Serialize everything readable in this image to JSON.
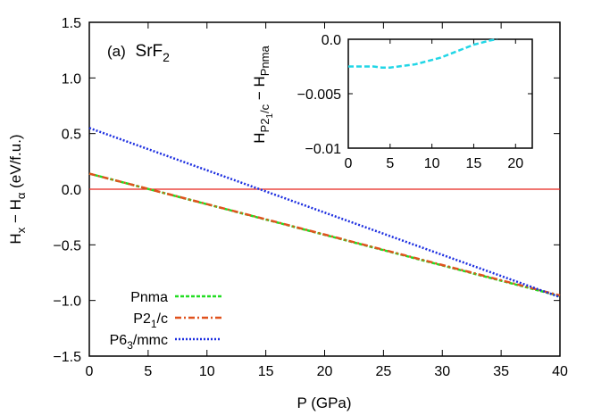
{
  "chart_data": [
    {
      "type": "line",
      "panel_label": "(a)",
      "compound": "SrF",
      "compound_sub": "2",
      "xlabel": "P (GPa)",
      "ylabel_main": "H",
      "ylabel_sub1": "x",
      "ylabel_mid": " − H",
      "ylabel_sub2": "α",
      "ylabel_tail": " (eV/f.u.)",
      "xlim": [
        0,
        40
      ],
      "ylim": [
        -1.5,
        1.5
      ],
      "xticks": [
        "0",
        "5",
        "10",
        "15",
        "20",
        "25",
        "30",
        "35",
        "40"
      ],
      "yticks": [
        "1.5",
        "1.0",
        "0.5",
        "0.0",
        "−0.5",
        "−1.0",
        "−1.5"
      ],
      "grid": false,
      "legend_position": "bottom-left",
      "reference_line": {
        "y": 0.0,
        "color": "#e8251c"
      },
      "series": [
        {
          "name": "Pnma",
          "legend_main": "Pnma",
          "legend_sub": "",
          "legend_tail": "",
          "color": "#22dd22",
          "dash": "4,2",
          "x": [
            0,
            40
          ],
          "y": [
            0.14,
            -0.96
          ]
        },
        {
          "name": "P21/c",
          "legend_main": "P2",
          "legend_sub": "1",
          "legend_tail": "/c",
          "color": "#e0521e",
          "dash": "7,3,2,3",
          "x": [
            0,
            40
          ],
          "y": [
            0.14,
            -0.955
          ]
        },
        {
          "name": "P63/mmc",
          "legend_main": "P6",
          "legend_sub": "3",
          "legend_tail": "/mmc",
          "color": "#1c2ee0",
          "dash": "2,2",
          "x": [
            0,
            40
          ],
          "y": [
            0.55,
            -0.97
          ]
        }
      ]
    },
    {
      "type": "line",
      "role": "inset",
      "ylabel_main": "H",
      "ylabel_sub1": "P2",
      "ylabel_subsub": "1",
      "ylabel_sub1b": "/c",
      "ylabel_mid": " − H",
      "ylabel_sub2": "Pnma",
      "xlim": [
        0,
        22
      ],
      "ylim": [
        -0.01,
        0.0
      ],
      "xticks": [
        "0",
        "5",
        "10",
        "15",
        "20"
      ],
      "yticks": [
        "0.0",
        "−0.005",
        "−0.01"
      ],
      "series": [
        {
          "color": "#22d6e6",
          "dash": "6,3",
          "x": [
            0,
            1,
            2,
            3,
            4,
            5,
            6,
            7,
            8,
            9,
            10,
            11,
            12,
            13,
            14,
            15,
            16,
            17,
            17.8
          ],
          "y": [
            -0.0025,
            -0.0025,
            -0.0025,
            -0.0025,
            -0.0026,
            -0.0026,
            -0.0025,
            -0.0024,
            -0.0023,
            -0.0021,
            -0.0019,
            -0.0017,
            -0.0014,
            -0.0011,
            -0.0008,
            -0.0005,
            -0.0003,
            -0.0001,
            0.0
          ]
        }
      ]
    }
  ]
}
